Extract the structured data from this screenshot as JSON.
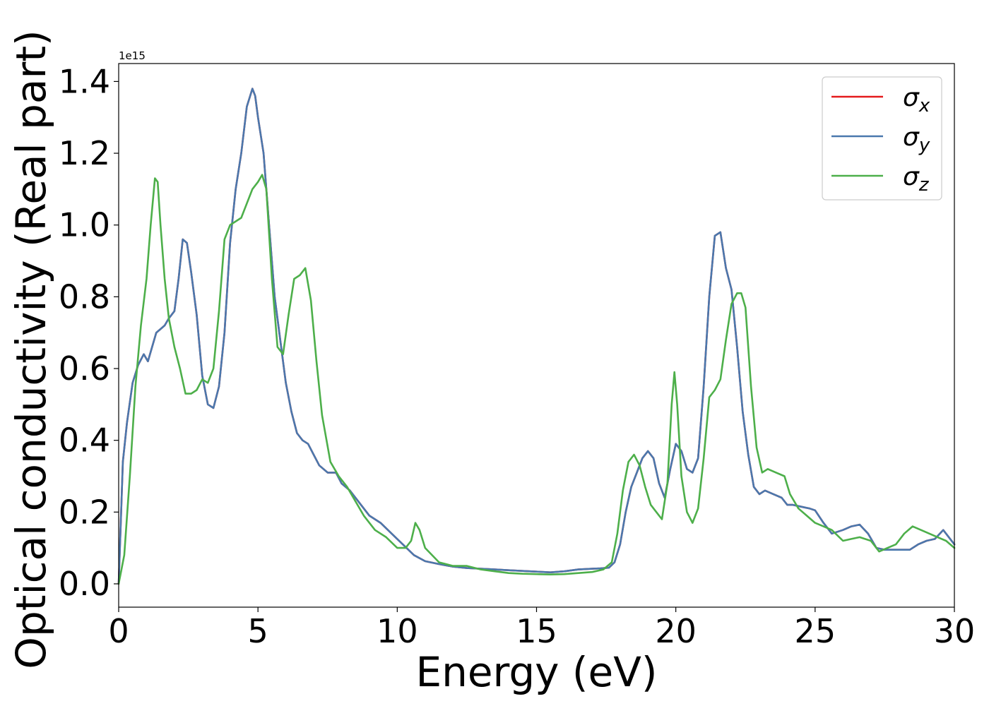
{
  "chart_data": {
    "type": "line",
    "title": "",
    "xlabel": "Energy (eV)",
    "ylabel": "Optical conductivity (Real part)",
    "offset_text": "1e15",
    "xlim": [
      0,
      30
    ],
    "ylim": [
      -0.065,
      1.45
    ],
    "y_scale_factor": 1000000000000000.0,
    "xticks": [
      0,
      5,
      10,
      15,
      20,
      25,
      30
    ],
    "xtick_labels": [
      "0",
      "5",
      "10",
      "15",
      "20",
      "25",
      "30"
    ],
    "yticks": [
      0.0,
      0.2,
      0.4,
      0.6,
      0.8,
      1.0,
      1.2,
      1.4
    ],
    "ytick_labels": [
      "0.0",
      "0.2",
      "0.4",
      "0.6",
      "0.8",
      "1.0",
      "1.2",
      "1.4"
    ],
    "grid": false,
    "legend_position": "top-right",
    "series": [
      {
        "name": "σx",
        "legend_base": "σ",
        "legend_sub": "x",
        "color": "#e41a1c",
        "x": [
          0,
          0.15,
          0.3,
          0.5,
          0.7,
          0.9,
          1.05,
          1.2,
          1.35,
          1.5,
          1.65,
          1.8,
          2.0,
          2.15,
          2.3,
          2.45,
          2.6,
          2.8,
          3.0,
          3.2,
          3.4,
          3.6,
          3.8,
          4.0,
          4.2,
          4.4,
          4.6,
          4.8,
          4.9,
          5.0,
          5.2,
          5.4,
          5.6,
          5.8,
          6.0,
          6.2,
          6.4,
          6.6,
          6.8,
          7.0,
          7.2,
          7.5,
          7.8,
          8.0,
          8.3,
          8.6,
          9.0,
          9.4,
          9.8,
          10.2,
          10.6,
          11.0,
          11.5,
          12.0,
          12.5,
          13.0,
          13.5,
          14.0,
          14.5,
          15.0,
          15.5,
          16.0,
          16.5,
          17.0,
          17.3,
          17.6,
          17.8,
          18.0,
          18.2,
          18.4,
          18.6,
          18.8,
          19.0,
          19.2,
          19.4,
          19.6,
          19.8,
          20.0,
          20.2,
          20.4,
          20.6,
          20.8,
          21.0,
          21.2,
          21.4,
          21.6,
          21.8,
          22.0,
          22.2,
          22.4,
          22.6,
          22.8,
          23.0,
          23.2,
          23.5,
          23.8,
          24.0,
          24.2,
          24.5,
          24.8,
          25.0,
          25.3,
          25.6,
          26.0,
          26.3,
          26.6,
          26.9,
          27.2,
          27.5,
          28.0,
          28.4,
          28.7,
          29.0,
          29.3,
          29.6,
          30.0
        ],
        "y": [
          0.0,
          0.34,
          0.45,
          0.56,
          0.61,
          0.64,
          0.62,
          0.66,
          0.7,
          0.71,
          0.72,
          0.74,
          0.76,
          0.85,
          0.96,
          0.95,
          0.87,
          0.75,
          0.58,
          0.5,
          0.49,
          0.55,
          0.7,
          0.95,
          1.1,
          1.2,
          1.33,
          1.38,
          1.36,
          1.3,
          1.2,
          1.0,
          0.8,
          0.68,
          0.56,
          0.48,
          0.42,
          0.4,
          0.39,
          0.36,
          0.33,
          0.31,
          0.31,
          0.28,
          0.26,
          0.23,
          0.19,
          0.17,
          0.14,
          0.11,
          0.08,
          0.063,
          0.055,
          0.048,
          0.044,
          0.042,
          0.04,
          0.038,
          0.036,
          0.034,
          0.032,
          0.035,
          0.04,
          0.042,
          0.043,
          0.045,
          0.06,
          0.11,
          0.2,
          0.27,
          0.31,
          0.35,
          0.37,
          0.35,
          0.28,
          0.24,
          0.32,
          0.39,
          0.37,
          0.32,
          0.31,
          0.35,
          0.55,
          0.8,
          0.97,
          0.98,
          0.88,
          0.82,
          0.66,
          0.48,
          0.36,
          0.27,
          0.25,
          0.26,
          0.25,
          0.24,
          0.22,
          0.22,
          0.215,
          0.21,
          0.205,
          0.17,
          0.14,
          0.15,
          0.16,
          0.165,
          0.14,
          0.1,
          0.095,
          0.095,
          0.095,
          0.11,
          0.12,
          0.125,
          0.15,
          0.11
        ]
      },
      {
        "name": "σy",
        "legend_base": "σ",
        "legend_sub": "y",
        "color": "#4a78ad",
        "x": [
          0,
          0.15,
          0.3,
          0.5,
          0.7,
          0.9,
          1.05,
          1.2,
          1.35,
          1.5,
          1.65,
          1.8,
          2.0,
          2.15,
          2.3,
          2.45,
          2.6,
          2.8,
          3.0,
          3.2,
          3.4,
          3.6,
          3.8,
          4.0,
          4.2,
          4.4,
          4.6,
          4.8,
          4.9,
          5.0,
          5.2,
          5.4,
          5.6,
          5.8,
          6.0,
          6.2,
          6.4,
          6.6,
          6.8,
          7.0,
          7.2,
          7.5,
          7.8,
          8.0,
          8.3,
          8.6,
          9.0,
          9.4,
          9.8,
          10.2,
          10.6,
          11.0,
          11.5,
          12.0,
          12.5,
          13.0,
          13.5,
          14.0,
          14.5,
          15.0,
          15.5,
          16.0,
          16.5,
          17.0,
          17.3,
          17.6,
          17.8,
          18.0,
          18.2,
          18.4,
          18.6,
          18.8,
          19.0,
          19.2,
          19.4,
          19.6,
          19.8,
          20.0,
          20.2,
          20.4,
          20.6,
          20.8,
          21.0,
          21.2,
          21.4,
          21.6,
          21.8,
          22.0,
          22.2,
          22.4,
          22.6,
          22.8,
          23.0,
          23.2,
          23.5,
          23.8,
          24.0,
          24.2,
          24.5,
          24.8,
          25.0,
          25.3,
          25.6,
          26.0,
          26.3,
          26.6,
          26.9,
          27.2,
          27.5,
          28.0,
          28.4,
          28.7,
          29.0,
          29.3,
          29.6,
          30.0
        ],
        "y": [
          0.0,
          0.34,
          0.45,
          0.56,
          0.61,
          0.64,
          0.62,
          0.66,
          0.7,
          0.71,
          0.72,
          0.74,
          0.76,
          0.85,
          0.96,
          0.95,
          0.87,
          0.75,
          0.58,
          0.5,
          0.49,
          0.55,
          0.7,
          0.95,
          1.1,
          1.2,
          1.33,
          1.38,
          1.36,
          1.3,
          1.2,
          1.0,
          0.8,
          0.68,
          0.56,
          0.48,
          0.42,
          0.4,
          0.39,
          0.36,
          0.33,
          0.31,
          0.31,
          0.28,
          0.26,
          0.23,
          0.19,
          0.17,
          0.14,
          0.11,
          0.08,
          0.063,
          0.055,
          0.048,
          0.044,
          0.042,
          0.04,
          0.038,
          0.036,
          0.034,
          0.032,
          0.035,
          0.04,
          0.042,
          0.043,
          0.045,
          0.06,
          0.11,
          0.2,
          0.27,
          0.31,
          0.35,
          0.37,
          0.35,
          0.28,
          0.24,
          0.32,
          0.39,
          0.37,
          0.32,
          0.31,
          0.35,
          0.55,
          0.8,
          0.97,
          0.98,
          0.88,
          0.82,
          0.66,
          0.48,
          0.36,
          0.27,
          0.25,
          0.26,
          0.25,
          0.24,
          0.22,
          0.22,
          0.215,
          0.21,
          0.205,
          0.17,
          0.14,
          0.15,
          0.16,
          0.165,
          0.14,
          0.1,
          0.095,
          0.095,
          0.095,
          0.11,
          0.12,
          0.125,
          0.15,
          0.11
        ]
      },
      {
        "name": "σz",
        "legend_base": "σ",
        "legend_sub": "z",
        "color": "#4daf4a",
        "x": [
          0,
          0.2,
          0.4,
          0.6,
          0.8,
          1.0,
          1.15,
          1.3,
          1.4,
          1.5,
          1.65,
          1.8,
          2.0,
          2.2,
          2.4,
          2.6,
          2.8,
          3.0,
          3.2,
          3.4,
          3.6,
          3.8,
          4.0,
          4.2,
          4.4,
          4.6,
          4.8,
          5.0,
          5.15,
          5.3,
          5.5,
          5.7,
          5.9,
          6.1,
          6.3,
          6.5,
          6.7,
          6.9,
          7.1,
          7.3,
          7.6,
          7.9,
          8.2,
          8.5,
          8.8,
          9.2,
          9.6,
          10.0,
          10.3,
          10.5,
          10.65,
          10.8,
          11.0,
          11.5,
          12.0,
          12.5,
          13.0,
          13.5,
          14.0,
          14.5,
          15.0,
          15.5,
          16.0,
          16.5,
          17.0,
          17.4,
          17.7,
          17.9,
          18.1,
          18.3,
          18.5,
          18.7,
          18.9,
          19.1,
          19.3,
          19.5,
          19.7,
          19.85,
          19.95,
          20.05,
          20.2,
          20.4,
          20.6,
          20.8,
          21.0,
          21.2,
          21.4,
          21.6,
          21.8,
          22.0,
          22.2,
          22.35,
          22.5,
          22.7,
          22.9,
          23.1,
          23.3,
          23.6,
          23.9,
          24.1,
          24.4,
          24.7,
          25.0,
          25.3,
          25.6,
          26.0,
          26.3,
          26.6,
          27.0,
          27.3,
          27.6,
          27.9,
          28.2,
          28.5,
          28.8,
          29.1,
          29.4,
          29.7,
          30.0
        ],
        "y": [
          0.0,
          0.08,
          0.3,
          0.55,
          0.72,
          0.85,
          1.0,
          1.13,
          1.12,
          1.0,
          0.85,
          0.74,
          0.66,
          0.6,
          0.53,
          0.53,
          0.54,
          0.57,
          0.56,
          0.6,
          0.76,
          0.96,
          1.0,
          1.01,
          1.02,
          1.06,
          1.1,
          1.12,
          1.14,
          1.1,
          0.85,
          0.66,
          0.64,
          0.75,
          0.85,
          0.86,
          0.88,
          0.79,
          0.62,
          0.47,
          0.34,
          0.3,
          0.27,
          0.23,
          0.19,
          0.15,
          0.13,
          0.1,
          0.1,
          0.12,
          0.17,
          0.15,
          0.1,
          0.06,
          0.05,
          0.05,
          0.04,
          0.035,
          0.03,
          0.028,
          0.027,
          0.026,
          0.027,
          0.03,
          0.033,
          0.04,
          0.06,
          0.14,
          0.26,
          0.34,
          0.36,
          0.33,
          0.27,
          0.22,
          0.2,
          0.18,
          0.28,
          0.5,
          0.59,
          0.5,
          0.3,
          0.2,
          0.17,
          0.21,
          0.35,
          0.52,
          0.54,
          0.57,
          0.68,
          0.78,
          0.81,
          0.81,
          0.77,
          0.55,
          0.38,
          0.31,
          0.32,
          0.31,
          0.3,
          0.25,
          0.21,
          0.19,
          0.17,
          0.16,
          0.15,
          0.12,
          0.125,
          0.13,
          0.12,
          0.09,
          0.1,
          0.11,
          0.14,
          0.16,
          0.15,
          0.14,
          0.13,
          0.12,
          0.1
        ]
      }
    ]
  }
}
